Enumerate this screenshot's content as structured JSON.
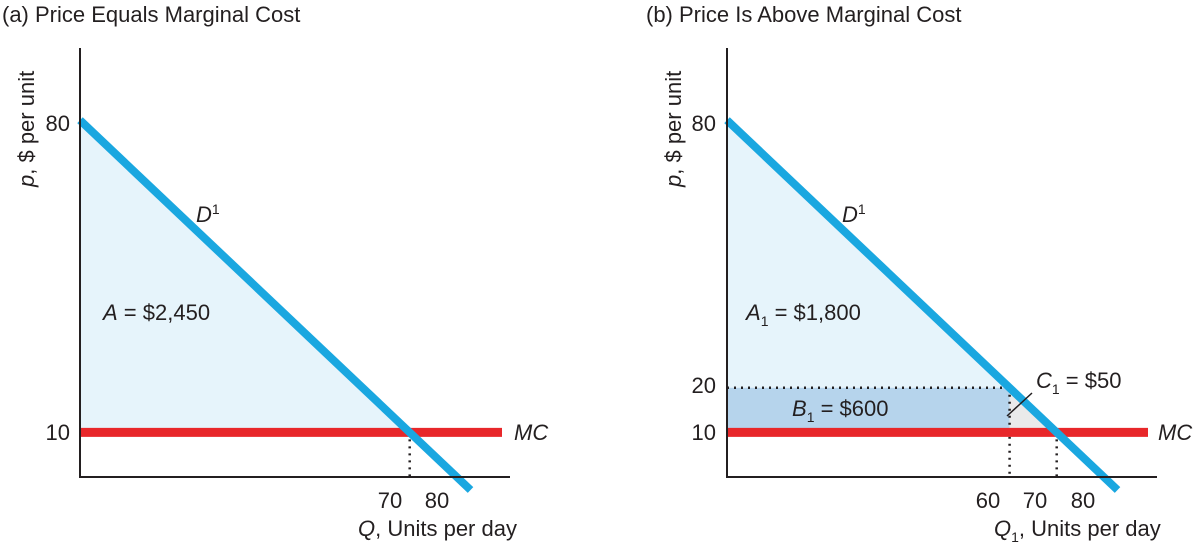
{
  "chart_data": [
    {
      "type": "area",
      "title": "(a) Price Equals Marginal Cost",
      "ylabel_var": "p",
      "ylabel_rest": ", $ per unit",
      "xlabel_var": "Q",
      "xlabel_sub": "",
      "xlabel_rest": ", Units per day",
      "yticks": [
        "80",
        "10"
      ],
      "xticks": [
        "70",
        "80"
      ],
      "ylim": [
        0,
        80
      ],
      "xlim": [
        0,
        80
      ],
      "demand": {
        "label": "D",
        "sup": "1",
        "points": [
          [
            0,
            80
          ],
          [
            80,
            0
          ]
        ],
        "color": "#1aa7e0"
      },
      "mc": {
        "label": "MC",
        "price": 10,
        "color": "#e8272a"
      },
      "quantity": 70,
      "areas": [
        {
          "letter": "A",
          "sub": "",
          "rest": " = $2,450",
          "value": 2450,
          "fill": "#e6f4fb",
          "polygon": [
            [
              0,
              80
            ],
            [
              70,
              10
            ],
            [
              0,
              10
            ]
          ]
        }
      ]
    },
    {
      "type": "area",
      "title": "(b) Price Is Above Marginal Cost",
      "ylabel_var": "p",
      "ylabel_rest": ", $ per unit",
      "xlabel_var": "Q",
      "xlabel_sub": "1",
      "xlabel_rest": ", Units per day",
      "yticks": [
        "80",
        "20",
        "10"
      ],
      "xticks": [
        "60",
        "70",
        "80"
      ],
      "ylim": [
        0,
        80
      ],
      "xlim": [
        0,
        80
      ],
      "demand": {
        "label": "D",
        "sup": "1",
        "points": [
          [
            0,
            80
          ],
          [
            80,
            0
          ]
        ],
        "color": "#1aa7e0"
      },
      "mc": {
        "label": "MC",
        "price": 10,
        "color": "#e8272a"
      },
      "price": 20,
      "quantity": 60,
      "quantity_mc": 70,
      "areas": [
        {
          "letter": "A",
          "sub": "1",
          "rest": " = $1,800",
          "value": 1800,
          "fill": "#e6f4fb",
          "polygon": [
            [
              0,
              80
            ],
            [
              60,
              20
            ],
            [
              0,
              20
            ]
          ]
        },
        {
          "letter": "B",
          "sub": "1",
          "rest": " = $600",
          "value": 600,
          "fill": "#b6d4ec",
          "polygon": [
            [
              0,
              20
            ],
            [
              60,
              20
            ],
            [
              60,
              10
            ],
            [
              0,
              10
            ]
          ]
        },
        {
          "letter": "C",
          "sub": "1",
          "rest": " = $50",
          "value": 50,
          "fill": "#eaeaea",
          "polygon": [
            [
              60,
              20
            ],
            [
              70,
              10
            ],
            [
              60,
              10
            ]
          ]
        }
      ]
    }
  ]
}
